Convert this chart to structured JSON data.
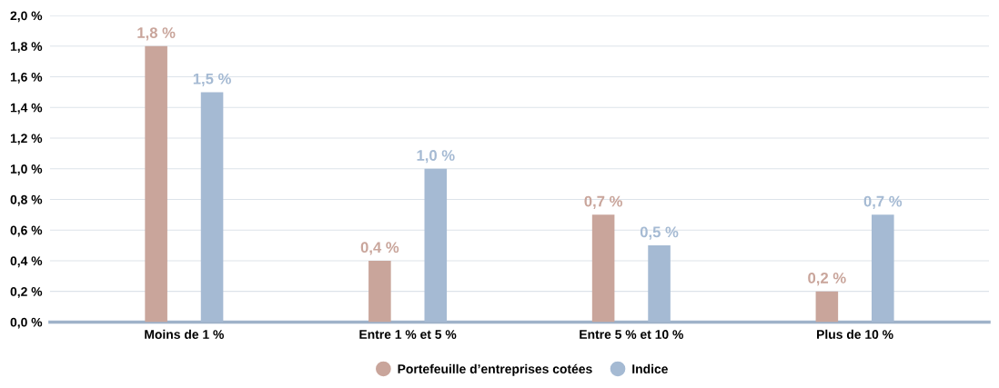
{
  "chart_data": {
    "type": "bar",
    "categories": [
      "Moins de 1 %",
      "Entre 1 % et 5 %",
      "Entre 5 % et 10 %",
      "Plus de 10 %"
    ],
    "series": [
      {
        "name": "Portefeuille d’entreprises cotées",
        "color": "#c9a59b",
        "values": [
          1.8,
          0.4,
          0.7,
          0.2
        ],
        "value_labels": [
          "1,8 %",
          "0,4 %",
          "0,7 %",
          "0,2 %"
        ]
      },
      {
        "name": "Indice",
        "color": "#a5bad3",
        "values": [
          1.5,
          1.0,
          0.5,
          0.7
        ],
        "value_labels": [
          "1,5 %",
          "1,0 %",
          "0,5 %",
          "0,7 %"
        ]
      }
    ],
    "ylim": [
      0,
      2.0
    ],
    "yticks": [
      {
        "value": 0,
        "label": "0,0 %"
      },
      {
        "value": 0.2,
        "label": "0,2 %"
      },
      {
        "value": 0.4,
        "label": "0,4 %"
      },
      {
        "value": 0.6,
        "label": "0,6 %"
      },
      {
        "value": 0.8,
        "label": "0,8 %"
      },
      {
        "value": 1.0,
        "label": "1,0 %"
      },
      {
        "value": 1.2,
        "label": "1,2 %"
      },
      {
        "value": 1.4,
        "label": "1,4 %"
      },
      {
        "value": 1.6,
        "label": "1,6 %"
      },
      {
        "value": 1.8,
        "label": "1,8 %"
      },
      {
        "value": 2.0,
        "label": "2,0 %"
      }
    ],
    "grid": "y",
    "legend": "bottom"
  }
}
